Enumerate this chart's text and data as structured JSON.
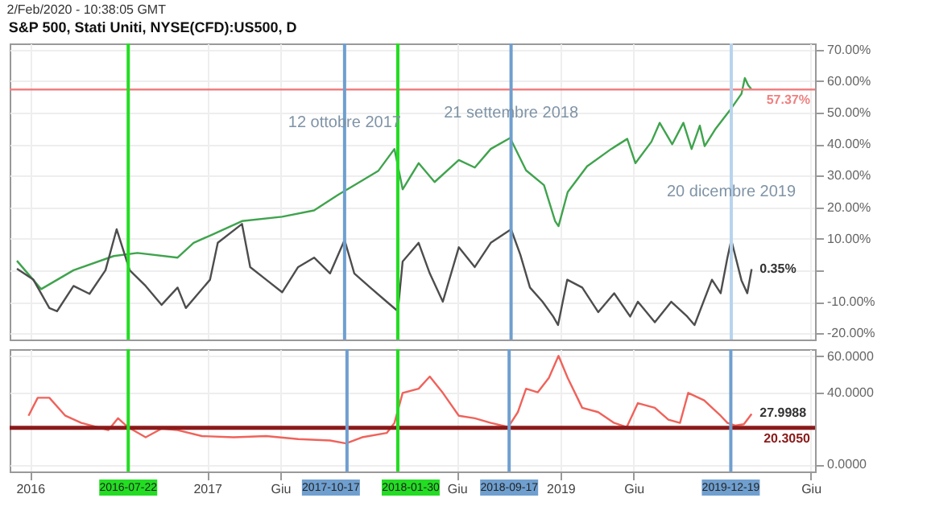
{
  "chart_data": [
    {
      "type": "line",
      "title": "S&P 500, Stati Uniti, NYSE(CFD):US500, D",
      "annotations": [
        "2/Feb/2020 - 10:38:05 GMT",
        {
          "text": "12 ottobre 2017",
          "x": "2017-10-12",
          "y": 47
        },
        {
          "text": "21 settembre 2018",
          "x": "2018-09-21",
          "y": 50
        },
        {
          "text": "20 dicembre 2019",
          "x": "2019-12-20",
          "y": 25
        },
        {
          "text": "0.35%",
          "x": "2020-01-31",
          "y": 0.35
        }
      ],
      "xlim": [
        "2015-11-20",
        "2020-06-10"
      ],
      "xticks": [
        {
          "value": "2016-01-01",
          "label": null
        },
        {
          "value": "2017-01-01",
          "label": null
        },
        {
          "value": "2017-06-01",
          "label": null
        },
        {
          "value": "2018-06-01",
          "label": null
        },
        {
          "value": "2019-01-01",
          "label": null
        },
        {
          "value": "2019-06-01",
          "label": null
        },
        {
          "value": "2020-06-01",
          "label": null
        }
      ],
      "tick_labels": "y",
      "ylim": [
        -22,
        72
      ],
      "yticks": [
        {
          "value": -20,
          "label": "-20.00%"
        },
        {
          "value": -10,
          "label": "-10.00%"
        },
        {
          "value": 0,
          "label": null
        },
        {
          "value": 10,
          "label": "10.00%"
        },
        {
          "value": 20,
          "label": "20.00%"
        },
        {
          "value": 30,
          "label": "30.00%"
        },
        {
          "value": 40,
          "label": "40.00%"
        },
        {
          "value": 50,
          "label": "50.00%"
        },
        {
          "value": 60,
          "label": "60.00%"
        },
        {
          "value": 70,
          "label": "70.00%"
        }
      ],
      "grid": true,
      "series": [
        {
          "color": "#3fa34d",
          "x": [
            "2015-12-05",
            "2016-01-24",
            "2016-03-31",
            "2016-06-22",
            "2016-08-10",
            "2016-11-01",
            "2016-12-04",
            "2017-01-07",
            "2017-03-14",
            "2017-06-05",
            "2017-08-10",
            "2017-09-29",
            "2017-11-01",
            "2017-12-21",
            "2018-01-23",
            "2018-02-09",
            "2018-03-14",
            "2018-04-16",
            "2018-06-05",
            "2018-07-08",
            "2018-08-10",
            "2018-09-19",
            "2018-10-22",
            "2018-11-28",
            "2018-12-21",
            "2018-12-28",
            "2019-01-16",
            "2019-02-25",
            "2019-04-16",
            "2019-05-19",
            "2019-06-05",
            "2019-07-08",
            "2019-07-25",
            "2019-08-20",
            "2019-09-12",
            "2019-09-29",
            "2019-10-16",
            "2019-10-26",
            "2019-11-18",
            "2019-12-20",
            "2020-01-10",
            "2020-01-17",
            "2020-01-24",
            "2020-01-31"
          ],
          "values": [
            3,
            -6,
            0,
            4.5,
            5.5,
            4,
            8.7,
            11,
            15.6,
            17,
            19,
            24,
            27,
            31.6,
            38.5,
            25.7,
            34,
            28,
            35,
            32.6,
            38.5,
            42,
            31.7,
            27,
            15.6,
            14,
            24.8,
            33,
            38.5,
            41.7,
            34,
            40.8,
            46.8,
            40,
            46.8,
            38.5,
            45.9,
            39.4,
            45,
            51.4,
            56,
            61,
            58.7,
            57.37
          ]
        },
        {
          "color": "#4d4d4d",
          "x": [
            "2015-12-05",
            "2016-01-08",
            "2016-02-10",
            "2016-02-26",
            "2016-03-31",
            "2016-05-03",
            "2016-06-05",
            "2016-06-28",
            "2016-07-25",
            "2016-08-27",
            "2016-09-29",
            "2016-11-01",
            "2016-11-18",
            "2017-01-07",
            "2017-01-23",
            "2017-03-14",
            "2017-03-31",
            "2017-05-03",
            "2017-06-05",
            "2017-07-08",
            "2017-08-10",
            "2017-09-12",
            "2017-10-12",
            "2017-11-01",
            "2017-12-04",
            "2018-01-07",
            "2018-01-30",
            "2018-02-09",
            "2018-03-14",
            "2018-04-06",
            "2018-05-03",
            "2018-06-05",
            "2018-07-08",
            "2018-08-10",
            "2018-09-21",
            "2018-10-10",
            "2018-10-30",
            "2018-11-25",
            "2018-12-17",
            "2018-12-27",
            "2019-01-15",
            "2019-02-15",
            "2019-03-20",
            "2019-04-22",
            "2019-05-25",
            "2019-06-10",
            "2019-07-15",
            "2019-08-18",
            "2019-09-20",
            "2019-10-05",
            "2019-11-10",
            "2019-11-28",
            "2019-12-12",
            "2019-12-20",
            "2020-01-10",
            "2020-01-22",
            "2020-01-31"
          ],
          "values": [
            0.5,
            -3,
            -12,
            -13,
            -5,
            -7.5,
            0,
            13,
            0,
            -5,
            -11,
            -5.5,
            -12,
            -3,
            8.7,
            14.7,
            1,
            -3,
            -7,
            1,
            4,
            -1,
            9.6,
            -1,
            -5.5,
            -10,
            -13,
            2.8,
            8.7,
            -1,
            -10,
            7.3,
            1,
            8.7,
            13,
            5,
            -5.5,
            -10,
            -14.7,
            -17.4,
            -3,
            -5.5,
            -13.3,
            -7.3,
            -14.7,
            -10,
            -16.5,
            -10,
            -14.7,
            -17.4,
            -3,
            -7.3,
            4,
            9.6,
            -3.2,
            -7.3,
            0.35
          ]
        }
      ],
      "ref_lines": [
        {
          "axis": "y",
          "value": 57.37,
          "label": "57.37%",
          "color": "#f08080"
        },
        {
          "axis": "x",
          "value": "2016-07-22",
          "color": "#22dd22"
        },
        {
          "axis": "x",
          "value": "2017-10-12",
          "color": "#6f9fcf"
        },
        {
          "axis": "x",
          "value": "2018-01-30",
          "color": "#22dd22"
        },
        {
          "axis": "x",
          "value": "2018-09-21",
          "color": "#6f9fcf"
        },
        {
          "axis": "x",
          "value": "2019-12-20",
          "color": "#b8d4ee"
        }
      ]
    },
    {
      "type": "line",
      "annotations": [
        {
          "text": "27.9988",
          "x": "2020-01-31",
          "y": 27.9988
        }
      ],
      "xlim": [
        "2015-11-20",
        "2020-06-10"
      ],
      "xticks": [
        {
          "value": "2016-01-01",
          "label": "2016"
        },
        {
          "value": "2017-01-01",
          "label": "2017"
        },
        {
          "value": "2017-06-01",
          "label": "Giu"
        },
        {
          "value": "2018-06-01",
          "label": "Giu"
        },
        {
          "value": "2019-01-01",
          "label": "2019"
        },
        {
          "value": "2019-06-01",
          "label": "Giu"
        },
        {
          "value": "2020-06-01",
          "label": "Giu"
        }
      ],
      "ylim": [
        -4,
        64
      ],
      "yticks": [
        {
          "value": 0,
          "label": "0.0000"
        },
        {
          "value": 40,
          "label": "40.0000"
        },
        {
          "value": 60,
          "label": "60.0000"
        }
      ],
      "grid": true,
      "series": [
        {
          "color": "#f0625a",
          "x": [
            "2015-12-29",
            "2016-01-17",
            "2016-02-10",
            "2016-03-14",
            "2016-04-16",
            "2016-05-19",
            "2016-06-11",
            "2016-07-01",
            "2016-07-21",
            "2016-08-27",
            "2016-09-29",
            "2016-11-01",
            "2016-12-21",
            "2017-02-25",
            "2017-05-03",
            "2017-07-08",
            "2017-09-12",
            "2017-10-15",
            "2017-11-17",
            "2018-01-07",
            "2018-01-23",
            "2018-02-09",
            "2018-03-14",
            "2018-04-06",
            "2018-05-03",
            "2018-06-05",
            "2018-07-08",
            "2018-08-10",
            "2018-09-15",
            "2018-10-05",
            "2018-10-22",
            "2018-11-15",
            "2018-12-08",
            "2018-12-28",
            "2019-01-16",
            "2019-02-15",
            "2019-03-20",
            "2019-04-22",
            "2019-05-18",
            "2019-06-10",
            "2019-07-15",
            "2019-08-12",
            "2019-09-05",
            "2019-09-22",
            "2019-10-25",
            "2019-11-28",
            "2019-12-12",
            "2019-12-28",
            "2020-01-15",
            "2020-01-31"
          ],
          "values": [
            27,
            37,
            37,
            27,
            23,
            20.7,
            19,
            25.6,
            20.7,
            15,
            19.8,
            19,
            15.7,
            15,
            15.7,
            14,
            13.2,
            11.6,
            15,
            17.4,
            23,
            39.7,
            42,
            48.8,
            39.7,
            27,
            25.6,
            23,
            20.7,
            29,
            42,
            40,
            48,
            60.3,
            48,
            31.4,
            29,
            23,
            20.7,
            34,
            31.4,
            24.8,
            23,
            39.7,
            35.5,
            27,
            23,
            21.5,
            22.3,
            27.9988
          ]
        }
      ],
      "ref_lines": [
        {
          "axis": "y",
          "value": 20.305,
          "label": "20.3050",
          "color": "#8b1a1a"
        },
        {
          "axis": "x",
          "value": "2016-07-22",
          "label": "2016-07-22",
          "color": "#22dd22"
        },
        {
          "axis": "x",
          "value": "2017-10-17",
          "label": "2017-10-17",
          "color": "#6f9fcf"
        },
        {
          "axis": "x",
          "value": "2018-01-30",
          "label": "2018-01-30",
          "color": "#22dd22"
        },
        {
          "axis": "x",
          "value": "2018-09-17",
          "label": "2018-09-17",
          "color": "#6f9fcf"
        },
        {
          "axis": "x",
          "value": "2019-12-19",
          "label": "2019-12-19",
          "color": "#6f9fcf"
        }
      ]
    }
  ]
}
